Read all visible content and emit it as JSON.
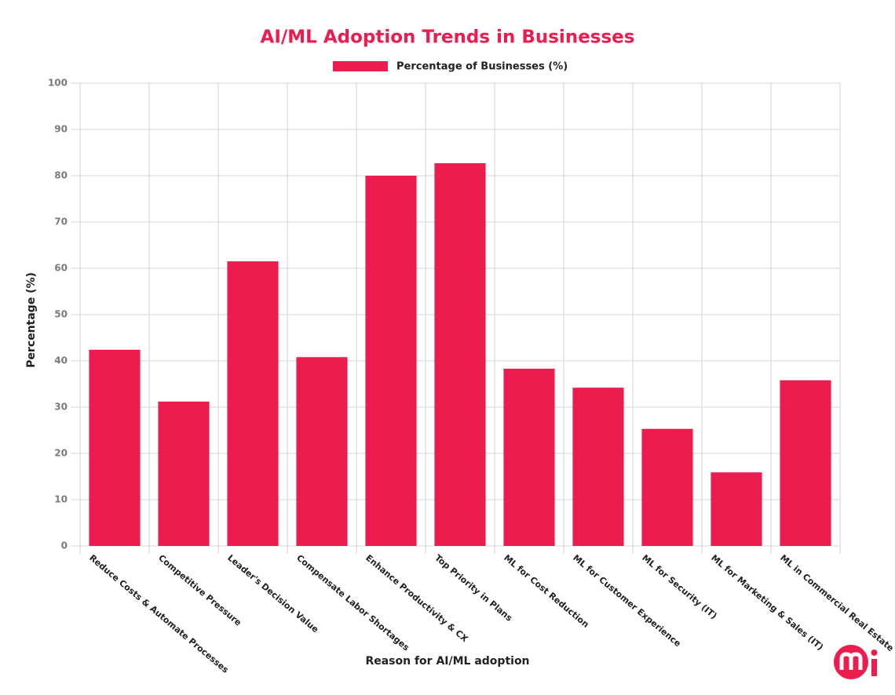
{
  "chart_data": {
    "type": "bar",
    "title": "AI/ML Adoption Trends in Businesses",
    "x_label": "Reason for AI/ML adoption",
    "y_label": "Percentage (%)",
    "categories": [
      "Reduce Costs & Automate Processes",
      "Competitive Pressure",
      "Leader's Decision Value",
      "Compensate Labor Shortages",
      "Enhance Productivity & CX",
      "Top Priority in Plans",
      "ML for Cost Reduction",
      "ML for Customer Experience",
      "ML for Security (IT)",
      "ML for Marketing & Sales (IT)",
      "ML in Commercial Real Estate"
    ],
    "series": [
      {
        "name": "Percentage of Businesses (%)",
        "color": "#ec1c4f",
        "values": [
          42.4,
          31.2,
          61.5,
          40.8,
          80,
          82.7,
          38.3,
          34.2,
          25.3,
          15.9,
          35.8
        ]
      }
    ],
    "ylim": [
      0,
      100
    ],
    "yticks": [
      0,
      10,
      20,
      30,
      40,
      50,
      60,
      70,
      80,
      90,
      100
    ],
    "grid": true
  }
}
